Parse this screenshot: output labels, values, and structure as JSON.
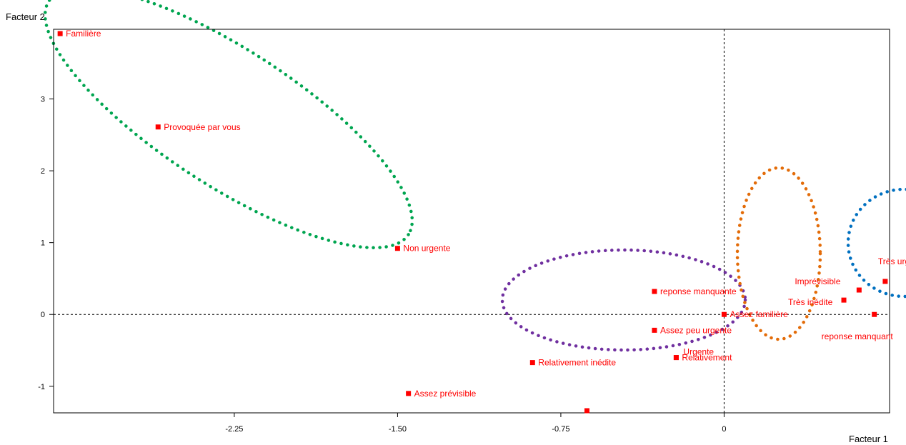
{
  "chart_data": {
    "type": "scatter",
    "xlabel": "Facteur 1",
    "ylabel": "Facteur 2",
    "xlim": [
      -3.08,
      0.76
    ],
    "ylim": [
      -1.37,
      3.97
    ],
    "x_ticks": [
      "-2.25",
      "-1.50",
      "-0.75",
      "0"
    ],
    "y_ticks": [
      "-1",
      "0",
      "1",
      "2",
      "3"
    ],
    "grid": false,
    "point_color": "#ff0000",
    "series": [
      {
        "points": [
          {
            "label": "Familière",
            "x": -3.05,
            "y": 3.91
          },
          {
            "label": "Provoquée par vous",
            "x": -2.6,
            "y": 2.61
          },
          {
            "label": "Non urgente",
            "x": -1.5,
            "y": 0.92
          },
          {
            "label": "reponse manquante",
            "x": -0.32,
            "y": 0.32
          },
          {
            "label": "Assez familière",
            "x": 0.0,
            "y": 0.0
          },
          {
            "label": "Assez peu urgente",
            "x": -0.32,
            "y": -0.22
          },
          {
            "label": "Relativement",
            "x": -0.22,
            "y": -0.6
          },
          {
            "label": "Relativement inédite",
            "x": -0.88,
            "y": -0.67
          },
          {
            "label": "Assez prévisible",
            "x": -1.45,
            "y": -1.1
          },
          {
            "label": "",
            "x": -0.63,
            "y": -1.34
          },
          {
            "label": "Urgente",
            "x": -0.22,
            "y": -0.6
          },
          {
            "label": "Très urgente",
            "x": 0.74,
            "y": 0.46
          },
          {
            "label": "Imprévisible",
            "x": 0.62,
            "y": 0.34
          },
          {
            "label": "Très inédite",
            "x": 0.55,
            "y": 0.2
          },
          {
            "label": "reponse manquant",
            "x": 0.69,
            "y": 0.0
          }
        ]
      }
    ],
    "annotations": {
      "ellipse_colors": [
        "#00a550",
        "#7030a0",
        "#e36c09",
        "#0070c0"
      ],
      "ellipse_style": "dotted"
    }
  }
}
